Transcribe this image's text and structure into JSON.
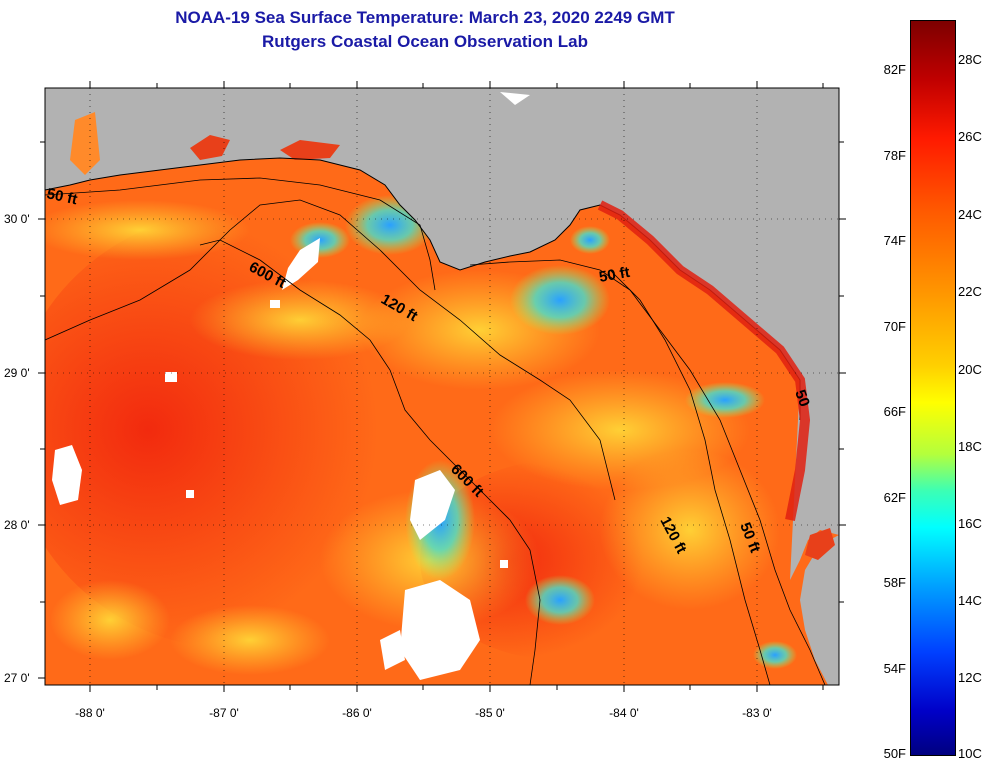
{
  "title_line1": "NOAA-19 Sea Surface Temperature:  March 23, 2020 2249 GMT",
  "title_line2": "Rutgers Coastal Ocean Observation Lab",
  "latitude_labels": [
    "30 0'",
    "29 0'",
    "28 0'",
    "27 0'"
  ],
  "longitude_labels": [
    "-88 0'",
    "-87 0'",
    "-86 0'",
    "-85 0'",
    "-84 0'",
    "-83 0'"
  ],
  "contour_labels": {
    "c50a": "50 ft",
    "c600a": "600 ft",
    "c120a": "120 ft",
    "c50b": "50 ft",
    "c600b": "600 ft",
    "c120b": "120 ft",
    "c50c": "50 ft",
    "c50d": "50"
  },
  "colorbar": {
    "fahrenheit": [
      "82F",
      "78F",
      "74F",
      "70F",
      "66F",
      "62F",
      "58F",
      "54F",
      "50F"
    ],
    "celsius": [
      "28C",
      "26C",
      "24C",
      "22C",
      "20C",
      "18C",
      "16C",
      "14C",
      "12C",
      "10C"
    ]
  },
  "colors": {
    "title": "#1a1aa6",
    "land": "#b2b2b2",
    "sea_warm": "#ff5a14",
    "sea_mid": "#ff9a1e",
    "sea_cool": "#ffe040",
    "sea_cold": "#3cb4ff",
    "cloud": "#ffffff"
  }
}
